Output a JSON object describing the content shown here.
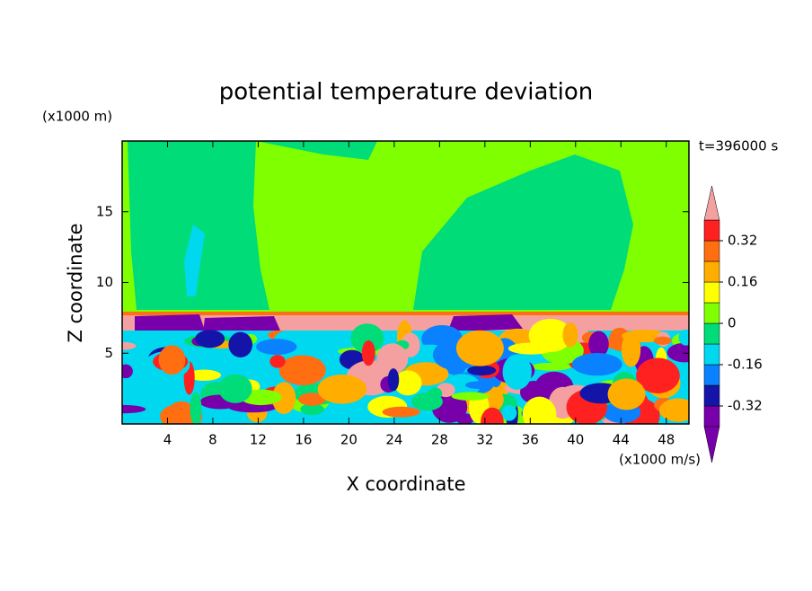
{
  "chart_data": {
    "type": "contour",
    "title": "potential temperature deviation",
    "subtitle": "t=396000 s",
    "x_label": "X coordinate",
    "y_label": "Z coordinate",
    "x_unit": "(x1000 m/s)",
    "y_unit": "(x1000 m)",
    "xlim": [
      0,
      50
    ],
    "ylim": [
      0,
      20
    ],
    "xticks": [
      4,
      8,
      12,
      16,
      20,
      24,
      28,
      32,
      36,
      40,
      44,
      48
    ],
    "yticks": [
      5,
      10,
      15
    ],
    "levels": [
      -0.4,
      -0.32,
      -0.24,
      -0.16,
      -0.08,
      0,
      0.08,
      0.16,
      0.24,
      0.32,
      0.4
    ],
    "colors": [
      "#7800aa",
      "#1414a8",
      "#0a82ff",
      "#00d8f0",
      "#00dc78",
      "#80ff00",
      "#ffff00",
      "#ffae00",
      "#ff6e10",
      "#ff2020",
      "#f5a0a0"
    ],
    "colorbar_ticks": [
      -0.32,
      -0.16,
      0,
      0.16,
      0.32
    ]
  }
}
